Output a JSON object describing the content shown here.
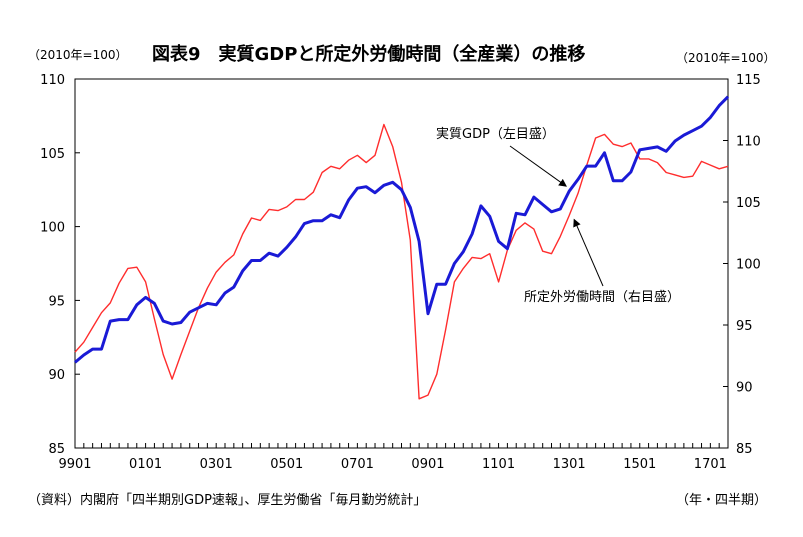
{
  "header": {
    "left_unit": "（2010年=100）",
    "title": "図表9　実質GDPと所定外労働時間（全産業）の推移",
    "right_unit": "（2010年=100）"
  },
  "footer": {
    "source": "（資料）内閣府「四半期別GDP速報」、厚生労働省「毎月勤労統計」",
    "x_unit": "（年・四半期）"
  },
  "chart_data": {
    "type": "line",
    "title": "図表9　実質GDPと所定外労働時間（全産業）の推移",
    "x_start": "1999Q1",
    "x_end": "2017Q4",
    "x_ticks": [
      "9901",
      "0101",
      "0301",
      "0501",
      "0701",
      "0901",
      "1101",
      "1301",
      "1501",
      "1701"
    ],
    "y_left": {
      "label": "（2010年=100）",
      "min": 85,
      "max": 110,
      "ticks": [
        85,
        90,
        95,
        100,
        105,
        110
      ]
    },
    "y_right": {
      "label": "（2010年=100）",
      "min": 85,
      "max": 115,
      "ticks": [
        85,
        90,
        95,
        100,
        105,
        110,
        115
      ]
    },
    "grid": false,
    "series": [
      {
        "name": "実質GDP（左目盛）",
        "axis": "left",
        "color": "#1a1ad6",
        "values": [
          90.8,
          91.3,
          91.7,
          91.7,
          93.6,
          93.7,
          93.7,
          94.7,
          95.2,
          94.8,
          93.6,
          93.4,
          93.5,
          94.2,
          94.5,
          94.8,
          94.7,
          95.5,
          95.9,
          97.0,
          97.7,
          97.7,
          98.2,
          98.0,
          98.6,
          99.3,
          100.2,
          100.4,
          100.4,
          100.8,
          100.6,
          101.8,
          102.6,
          102.7,
          102.3,
          102.8,
          103.0,
          102.5,
          101.3,
          99.0,
          94.1,
          96.1,
          96.1,
          97.5,
          98.3,
          99.5,
          101.4,
          100.7,
          99.0,
          98.5,
          100.9,
          100.8,
          102.0,
          101.5,
          101.0,
          101.2,
          102.4,
          103.2,
          104.1,
          104.1,
          105.0,
          103.1,
          103.1,
          103.7,
          105.2,
          105.3,
          105.4,
          105.1,
          105.8,
          106.2,
          106.5,
          106.8,
          107.4,
          108.2,
          108.8
        ]
      },
      {
        "name": "所定外労働時間（右目盛）",
        "axis": "right",
        "color": "#ff2d2d",
        "values": [
          92.8,
          93.6,
          94.8,
          96.0,
          96.8,
          98.4,
          99.6,
          99.7,
          98.5,
          95.5,
          92.6,
          90.6,
          92.6,
          94.5,
          96.4,
          98.0,
          99.3,
          100.1,
          100.7,
          102.4,
          103.7,
          103.5,
          104.4,
          104.3,
          104.6,
          105.2,
          105.2,
          105.8,
          107.4,
          107.9,
          107.7,
          108.4,
          108.8,
          108.2,
          108.8,
          111.3,
          109.5,
          106.6,
          101.9,
          89.0,
          89.3,
          91.0,
          94.6,
          98.5,
          99.6,
          100.5,
          100.4,
          100.8,
          98.5,
          101.1,
          102.7,
          103.3,
          102.8,
          101.0,
          100.8,
          102.2,
          103.9,
          105.7,
          108.0,
          110.2,
          110.5,
          109.7,
          109.5,
          109.8,
          108.5,
          108.5,
          108.2,
          107.4,
          107.2,
          107.0,
          107.1,
          108.3,
          108.0,
          107.7,
          107.9
        ]
      }
    ],
    "annotations": [
      {
        "text": "実質GDP（左目盛）",
        "series": 0
      },
      {
        "text": "所定外労働時間（右目盛）",
        "series": 1
      }
    ]
  }
}
